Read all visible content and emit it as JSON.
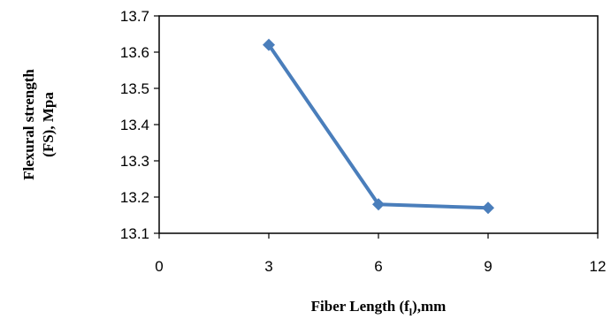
{
  "chart_data": {
    "type": "line",
    "xlabel": "Fiber Length (f",
    "xlabel_subscript": "l",
    "xlabel_suffix": "),mm",
    "ylabel": "Flexural strength",
    "ylabel_line2": "(FS), Mpa",
    "xlim": [
      0,
      12
    ],
    "ylim": [
      13.1,
      13.7
    ],
    "x_ticks": [
      "0",
      "3",
      "6",
      "9",
      "12"
    ],
    "y_ticks": [
      "13.1",
      "13.2",
      "13.3",
      "13.4",
      "13.5",
      "13.6",
      "13.7"
    ],
    "grid": false,
    "series": [
      {
        "x": [
          3,
          6,
          9
        ],
        "values": [
          13.62,
          13.18,
          13.17
        ],
        "color": "#4a7ebb",
        "marker": "diamond"
      }
    ]
  }
}
